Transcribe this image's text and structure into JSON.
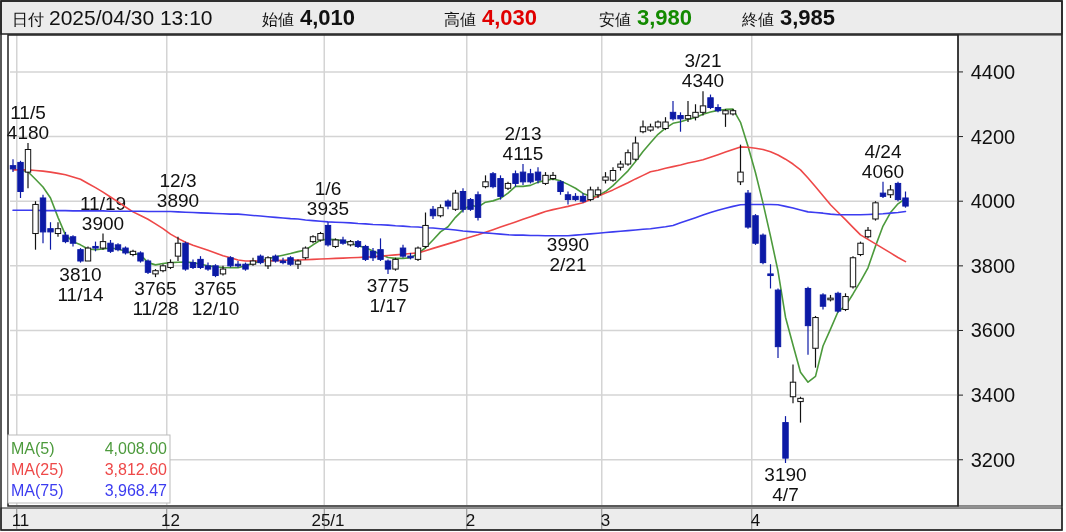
{
  "chart_data": {
    "type": "candlestick",
    "title": "日付 2025/04/30 13:10",
    "annotations": [
      "始値 4,010",
      "高値 4,030",
      "安値 3,980",
      "終値 3,985",
      {
        "text": "11/5\n4180",
        "y": 4180
      },
      {
        "text": "3810\n11/14",
        "y": 3810
      },
      {
        "text": "11/19\n3900",
        "y": 3900
      },
      {
        "text": "3765\n11/28",
        "y": 3765
      },
      {
        "text": "12/3\n3890",
        "y": 3890
      },
      {
        "text": "3765\n12/10",
        "y": 3765
      },
      {
        "text": "1/6\n3935",
        "y": 3935
      },
      {
        "text": "3775\n1/17",
        "y": 3775
      },
      {
        "text": "2/13\n4115",
        "y": 4115
      },
      {
        "text": "3990\n2/21",
        "y": 3990
      },
      {
        "text": "3/21\n4340",
        "y": 4340
      },
      {
        "text": "3190\n4/7",
        "y": 3190
      },
      {
        "text": "4/24\n4060",
        "y": 4060
      }
    ],
    "categories": [
      null,
      "11",
      null,
      null,
      null,
      null,
      null,
      null,
      null,
      null,
      null,
      null,
      null,
      null,
      null,
      null,
      null,
      null,
      null,
      null,
      null,
      "12",
      null,
      null,
      null,
      null,
      null,
      null,
      null,
      null,
      null,
      null,
      null,
      null,
      null,
      null,
      null,
      null,
      null,
      null,
      null,
      null,
      "25/1",
      null,
      null,
      null,
      null,
      null,
      null,
      null,
      null,
      null,
      null,
      null,
      null,
      null,
      null,
      null,
      null,
      null,
      null,
      "2",
      null,
      null,
      null,
      null,
      null,
      null,
      null,
      null,
      null,
      null,
      null,
      null,
      null,
      null,
      null,
      null,
      null,
      "3",
      null,
      null,
      null,
      null,
      null,
      null,
      null,
      null,
      null,
      null,
      null,
      null,
      null,
      null,
      null,
      null,
      null,
      null,
      null,
      "4",
      null,
      null,
      null,
      null,
      null,
      null,
      null,
      null,
      null,
      null,
      null,
      null,
      null,
      null,
      null,
      null,
      null,
      null,
      null,
      null
    ],
    "ohlc": [
      [
        4110,
        4130,
        4090,
        4100
      ],
      [
        4120,
        4125,
        4010,
        4030
      ],
      [
        4090,
        4180,
        4040,
        4160
      ],
      [
        3900,
        4000,
        3850,
        3990
      ],
      [
        4010,
        4020,
        3870,
        3905
      ],
      [
        3915,
        3935,
        3850,
        3905
      ],
      [
        3900,
        3935,
        3890,
        3915
      ],
      [
        3895,
        3905,
        3870,
        3875
      ],
      [
        3890,
        3895,
        3860,
        3870
      ],
      [
        3850,
        3855,
        3810,
        3815
      ],
      [
        3815,
        3860,
        3815,
        3855
      ],
      [
        3860,
        3875,
        3845,
        3855
      ],
      [
        3855,
        3900,
        3850,
        3875
      ],
      [
        3870,
        3880,
        3840,
        3845
      ],
      [
        3865,
        3870,
        3845,
        3850
      ],
      [
        3855,
        3860,
        3835,
        3840
      ],
      [
        3835,
        3850,
        3830,
        3845
      ],
      [
        3840,
        3845,
        3810,
        3815
      ],
      [
        3815,
        3820,
        3775,
        3780
      ],
      [
        3775,
        3790,
        3765,
        3785
      ],
      [
        3785,
        3805,
        3780,
        3800
      ],
      [
        3795,
        3820,
        3790,
        3810
      ],
      [
        3830,
        3890,
        3815,
        3870
      ],
      [
        3870,
        3875,
        3785,
        3790
      ],
      [
        3810,
        3820,
        3790,
        3795
      ],
      [
        3820,
        3830,
        3790,
        3795
      ],
      [
        3800,
        3810,
        3785,
        3790
      ],
      [
        3800,
        3805,
        3765,
        3770
      ],
      [
        3775,
        3800,
        3770,
        3790
      ],
      [
        3825,
        3830,
        3795,
        3800
      ],
      [
        3805,
        3815,
        3795,
        3800
      ],
      [
        3805,
        3810,
        3785,
        3790
      ],
      [
        3805,
        3825,
        3800,
        3815
      ],
      [
        3830,
        3835,
        3805,
        3810
      ],
      [
        3800,
        3830,
        3790,
        3825
      ],
      [
        3830,
        3835,
        3810,
        3815
      ],
      [
        3815,
        3825,
        3805,
        3810
      ],
      [
        3825,
        3830,
        3800,
        3805
      ],
      [
        3805,
        3820,
        3790,
        3815
      ],
      [
        3825,
        3860,
        3820,
        3855
      ],
      [
        3875,
        3895,
        3870,
        3890
      ],
      [
        3880,
        3905,
        3875,
        3900
      ],
      [
        3925,
        3935,
        3860,
        3865
      ],
      [
        3860,
        3885,
        3855,
        3880
      ],
      [
        3880,
        3890,
        3865,
        3870
      ],
      [
        3865,
        3880,
        3860,
        3875
      ],
      [
        3875,
        3880,
        3855,
        3860
      ],
      [
        3860,
        3865,
        3815,
        3820
      ],
      [
        3845,
        3855,
        3815,
        3825
      ],
      [
        3850,
        3885,
        3815,
        3820
      ],
      [
        3815,
        3820,
        3775,
        3790
      ],
      [
        3790,
        3825,
        3785,
        3820
      ],
      [
        3855,
        3865,
        3825,
        3830
      ],
      [
        3830,
        3840,
        3820,
        3825
      ],
      [
        3820,
        3860,
        3815,
        3855
      ],
      [
        3860,
        3965,
        3855,
        3925
      ],
      [
        3975,
        3985,
        3945,
        3955
      ],
      [
        3955,
        3990,
        3950,
        3980
      ],
      [
        4000,
        4005,
        3975,
        3985
      ],
      [
        3975,
        4035,
        3970,
        4025
      ],
      [
        4030,
        4040,
        3965,
        3975
      ],
      [
        4005,
        4010,
        3970,
        3975
      ],
      [
        4020,
        4030,
        3940,
        3950
      ],
      [
        4045,
        4080,
        4040,
        4060
      ],
      [
        4085,
        4090,
        4040,
        4045
      ],
      [
        4070,
        4080,
        4005,
        4015
      ],
      [
        4040,
        4060,
        4035,
        4055
      ],
      [
        4085,
        4095,
        4045,
        4055
      ],
      [
        4090,
        4115,
        4050,
        4060
      ],
      [
        4085,
        4100,
        4055,
        4060
      ],
      [
        4090,
        4105,
        4055,
        4065
      ],
      [
        4055,
        4090,
        4050,
        4080
      ],
      [
        4070,
        4090,
        4065,
        4080
      ],
      [
        4060,
        4065,
        4020,
        4030
      ],
      [
        4020,
        4030,
        3990,
        4005
      ],
      [
        4015,
        4025,
        4000,
        4005
      ],
      [
        4015,
        4025,
        3995,
        4000
      ],
      [
        4005,
        4045,
        4000,
        4035
      ],
      [
        4020,
        4045,
        4010,
        4035
      ],
      [
        4065,
        4090,
        4055,
        4075
      ],
      [
        4065,
        4105,
        4060,
        4095
      ],
      [
        4105,
        4125,
        4095,
        4115
      ],
      [
        4115,
        4160,
        4110,
        4150
      ],
      [
        4130,
        4200,
        4125,
        4180
      ],
      [
        4215,
        4250,
        4210,
        4230
      ],
      [
        4220,
        4240,
        4215,
        4230
      ],
      [
        4230,
        4250,
        4225,
        4245
      ],
      [
        4225,
        4260,
        4220,
        4245
      ],
      [
        4275,
        4310,
        4250,
        4255
      ],
      [
        4265,
        4275,
        4215,
        4255
      ],
      [
        4255,
        4310,
        4245,
        4265
      ],
      [
        4260,
        4300,
        4250,
        4275
      ],
      [
        4275,
        4340,
        4265,
        4295
      ],
      [
        4320,
        4330,
        4285,
        4290
      ],
      [
        4290,
        4300,
        4275,
        4280
      ],
      [
        4270,
        4285,
        4230,
        4280
      ],
      [
        4270,
        4285,
        4265,
        4280
      ],
      [
        4060,
        4175,
        4050,
        4090
      ],
      [
        4025,
        4035,
        3915,
        3920
      ],
      [
        3955,
        3960,
        3865,
        3870
      ],
      [
        3895,
        3900,
        3805,
        3810
      ],
      [
        3775,
        3805,
        3730,
        3770
      ],
      [
        3725,
        3730,
        3515,
        3550
      ],
      [
        3315,
        3335,
        3190,
        3205
      ],
      [
        3395,
        3495,
        3375,
        3440
      ],
      [
        3380,
        3395,
        3315,
        3390
      ],
      [
        3730,
        3735,
        3525,
        3615
      ],
      [
        3545,
        3645,
        3485,
        3640
      ],
      [
        3710,
        3715,
        3665,
        3675
      ],
      [
        3695,
        3710,
        3690,
        3700
      ],
      [
        3715,
        3720,
        3655,
        3660
      ],
      [
        3665,
        3715,
        3660,
        3705
      ],
      [
        3735,
        3830,
        3730,
        3825
      ],
      [
        3835,
        3875,
        3830,
        3870
      ],
      [
        3890,
        3920,
        3885,
        3910
      ],
      [
        3945,
        4000,
        3940,
        3995
      ],
      [
        4025,
        4060,
        4010,
        4015
      ],
      [
        4020,
        4050,
        4010,
        4035
      ],
      [
        4055,
        4060,
        4000,
        4005
      ],
      [
        4010,
        4030,
        3980,
        3985
      ]
    ],
    "series": [
      {
        "name": "MA(5) 4,008.00",
        "type": "line",
        "color": "#4c9a3c",
        "values": [
          null,
          4097,
          4091,
          4068,
          4044,
          4010,
          3950,
          3895,
          3875,
          3865,
          3852,
          3850,
          3852,
          3855,
          3852,
          3845,
          3838,
          3834,
          3810,
          3803,
          3807,
          3810,
          3811,
          3812,
          3810,
          3805,
          3800,
          3797,
          3795,
          3794,
          3794,
          3800,
          3808,
          3815,
          3822,
          3828,
          3833,
          3838,
          3844,
          3849,
          3865,
          3880,
          3882,
          3881,
          3878,
          3870,
          3862,
          3856,
          3846,
          3836,
          3826,
          3823,
          3823,
          3825,
          3838,
          3856,
          3880,
          3905,
          3921,
          3950,
          3973,
          3988,
          3982,
          3997,
          4001,
          4009,
          4025,
          4046,
          4046,
          4049,
          4059,
          4064,
          4069,
          4063,
          4052,
          4040,
          4024,
          4015,
          4016,
          4030,
          4048,
          4071,
          4094,
          4123,
          4154,
          4181,
          4207,
          4226,
          4241,
          4246,
          4253,
          4259,
          4269,
          4276,
          4281,
          4284,
          4285,
          4244,
          4170,
          4088,
          3994,
          3892,
          3784,
          3641,
          3555,
          3471,
          3440,
          3458,
          3552,
          3604,
          3658,
          3676,
          3713,
          3752,
          3794,
          3861,
          3923,
          3965,
          3992,
          4008
        ]
      },
      {
        "name": "MA(25) 3,812.60",
        "type": "line",
        "color": "#ee4848",
        "values": [
          4097,
          4097,
          4097,
          4095,
          4093,
          4090,
          4086,
          4082,
          4075,
          4068,
          4055,
          4042,
          4028,
          4013,
          3998,
          3982,
          3967,
          3956,
          3944,
          3930,
          3915,
          3898,
          3885,
          3873,
          3864,
          3856,
          3848,
          3840,
          3831,
          3825,
          3818,
          3815,
          3815,
          3815,
          3815,
          3816,
          3817,
          3818,
          3818,
          3819,
          3820,
          3821,
          3822,
          3823,
          3824,
          3825,
          3826,
          3827,
          3828,
          3830,
          3832,
          3834,
          3836,
          3838,
          3840,
          3847,
          3854,
          3861,
          3868,
          3875,
          3882,
          3889,
          3896,
          3904,
          3912,
          3920,
          3928,
          3936,
          3944,
          3952,
          3960,
          3968,
          3974,
          3979,
          3984,
          3990,
          3995,
          4005,
          4015,
          4025,
          4035,
          4046,
          4057,
          4069,
          4080,
          4091,
          4096,
          4102,
          4107,
          4112,
          4118,
          4123,
          4128,
          4136,
          4144,
          4152,
          4160,
          4168,
          4167,
          4164,
          4160,
          4153,
          4143,
          4130,
          4115,
          4097,
          4072,
          4045,
          4017,
          3989,
          3966,
          3943,
          3919,
          3896,
          3882,
          3868,
          3854,
          3840,
          3826,
          3813
        ]
      },
      {
        "name": "MA(75) 3,968.47",
        "type": "line",
        "color": "#3c3cf0",
        "values": [
          3972,
          3972,
          3972,
          3972,
          3971,
          3971,
          3971,
          3971,
          3970,
          3970,
          3970,
          3970,
          3970,
          3969,
          3969,
          3969,
          3969,
          3969,
          3968,
          3968,
          3968,
          3968,
          3967,
          3966,
          3965,
          3964,
          3963,
          3962,
          3961,
          3960,
          3960,
          3958,
          3956,
          3954,
          3952,
          3950,
          3948,
          3946,
          3945,
          3942,
          3940,
          3938,
          3936,
          3935,
          3934,
          3933,
          3931,
          3930,
          3928,
          3927,
          3926,
          3924,
          3923,
          3921,
          3920,
          3918,
          3917,
          3915,
          3913,
          3911,
          3908,
          3906,
          3904,
          3902,
          3900,
          3898,
          3896,
          3895,
          3895,
          3894,
          3894,
          3893,
          3893,
          3893,
          3893,
          3895,
          3897,
          3899,
          3901,
          3903,
          3905,
          3907,
          3909,
          3911,
          3913,
          3915,
          3918,
          3921,
          3925,
          3933,
          3941,
          3949,
          3957,
          3965,
          3972,
          3978,
          3984,
          3989,
          3990,
          3990,
          3990,
          3990,
          3989,
          3984,
          3979,
          3973,
          3967,
          3965,
          3963,
          3960,
          3958,
          3958,
          3958,
          3958,
          3959,
          3960,
          3961,
          3963,
          3965,
          3968
        ]
      }
    ],
    "ylim": [
      3060,
      4505
    ],
    "yticks": [
      3200,
      3400,
      3600,
      3800,
      4000,
      4200,
      4400
    ],
    "grid": true
  }
}
